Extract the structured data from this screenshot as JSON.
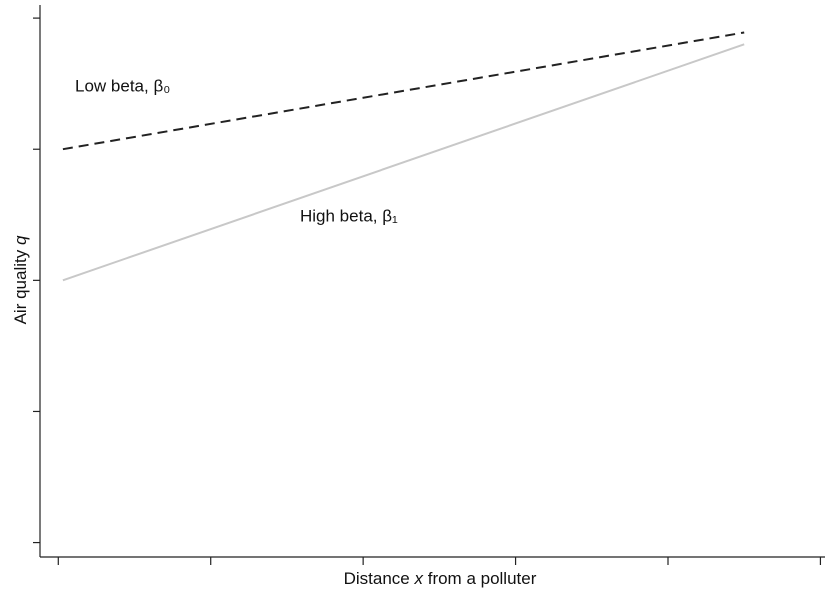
{
  "chart_data": {
    "type": "line",
    "x_label": [
      "Distance",
      "x",
      "from a polluter"
    ],
    "y_label": [
      "Air quality",
      "q"
    ],
    "x": [
      0.03,
      4.5
    ],
    "series": [
      {
        "name": "Low beta, β₀",
        "color": "#222222",
        "dash": true,
        "values": [
          3,
          3.89
        ]
      },
      {
        "name": "High beta, β₁",
        "color": "#c8c8c8",
        "dash": false,
        "values": [
          2,
          3.8
        ]
      }
    ],
    "xlim": [
      -0.12,
      5.03
    ],
    "ylim": [
      -0.11,
      4.1
    ],
    "xticks": [
      0,
      1,
      2,
      3,
      4,
      5
    ],
    "yticks": [
      0,
      1,
      2,
      3,
      4
    ]
  }
}
